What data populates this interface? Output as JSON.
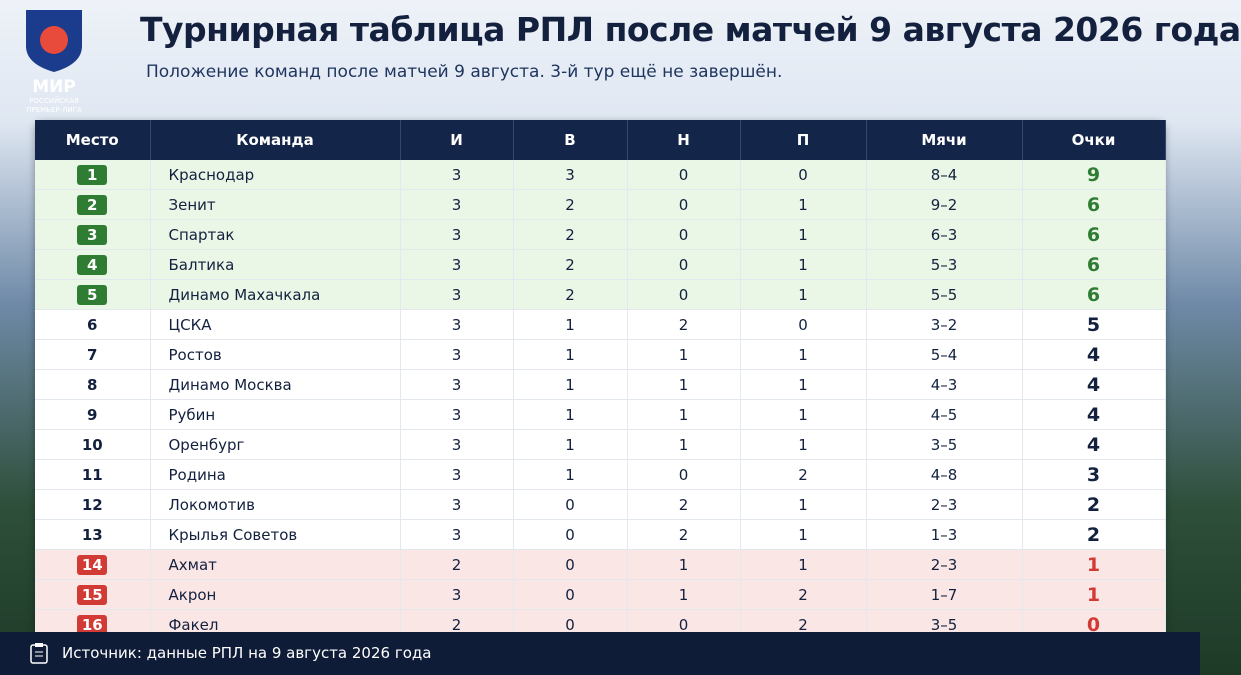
{
  "logo": {
    "title": "МИР",
    "line1": "РОССИЙСКАЯ",
    "line2": "ПРЕМЬЕР-ЛИГА"
  },
  "header": {
    "title": "Турнирная таблица РПЛ после матчей 9 августа 2026 года",
    "subtitle": "Положение команд после матчей 9 августа. 3-й тур ещё не завершён."
  },
  "table": {
    "columns": [
      "Место",
      "Команда",
      "И",
      "В",
      "Н",
      "П",
      "Мячи",
      "Очки"
    ],
    "rows": [
      [
        1,
        "Краснодар",
        3,
        3,
        0,
        0,
        "8–4",
        9
      ],
      [
        2,
        "Зенит",
        3,
        2,
        0,
        1,
        "9–2",
        6
      ],
      [
        3,
        "Спартак",
        3,
        2,
        0,
        1,
        "6–3",
        6
      ],
      [
        4,
        "Балтика",
        3,
        2,
        0,
        1,
        "5–3",
        6
      ],
      [
        5,
        "Динамо Махачкала",
        3,
        2,
        0,
        1,
        "5–5",
        6
      ],
      [
        6,
        "ЦСКА",
        3,
        1,
        2,
        0,
        "3–2",
        5
      ],
      [
        7,
        "Ростов",
        3,
        1,
        1,
        1,
        "5–4",
        4
      ],
      [
        8,
        "Динамо Москва",
        3,
        1,
        1,
        1,
        "4–3",
        4
      ],
      [
        9,
        "Рубин",
        3,
        1,
        1,
        1,
        "4–5",
        4
      ],
      [
        10,
        "Оренбург",
        3,
        1,
        1,
        1,
        "3–5",
        4
      ],
      [
        11,
        "Родина",
        3,
        1,
        0,
        2,
        "4–8",
        3
      ],
      [
        12,
        "Локомотив",
        3,
        0,
        2,
        1,
        "2–3",
        2
      ],
      [
        13,
        "Крылья Советов",
        3,
        0,
        2,
        1,
        "1–3",
        2
      ],
      [
        14,
        "Ахмат",
        2,
        0,
        1,
        1,
        "2–3",
        1
      ],
      [
        15,
        "Акрон",
        3,
        0,
        1,
        2,
        "1–7",
        1
      ],
      [
        16,
        "Факел",
        2,
        0,
        0,
        2,
        "3–5",
        0
      ]
    ]
  },
  "footer": {
    "source": "Источник: данные РПЛ на 9 августа 2026 года"
  }
}
